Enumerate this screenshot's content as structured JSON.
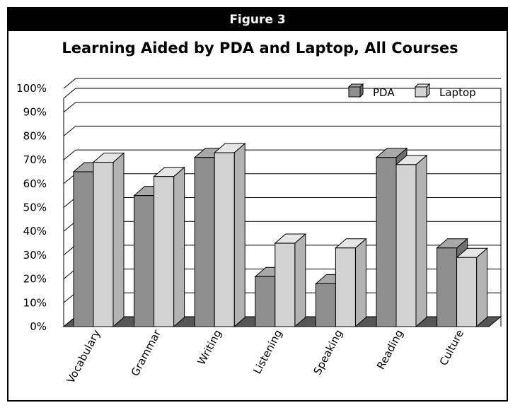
{
  "figure_label": "Figure 3",
  "colors": {
    "pda_front": "#8f8f8f",
    "pda_side": "#6e6e6e",
    "pda_top": "#a8a8a8",
    "laptop_front": "#d2d2d2",
    "laptop_side": "#b3b3b3",
    "laptop_top": "#e6e6e6",
    "floor": "#555555",
    "grid": "#000000"
  },
  "chart_data": {
    "type": "bar",
    "title": "Learning Aided by PDA and Laptop, All Courses",
    "xlabel": "",
    "ylabel": "",
    "ylim": [
      0,
      100
    ],
    "yticks": [
      "0%",
      "10%",
      "20%",
      "30%",
      "40%",
      "50%",
      "60%",
      "70%",
      "80%",
      "90%",
      "100%"
    ],
    "categories": [
      "Vocabulary",
      "Grammar",
      "Writing",
      "Listening",
      "Speaking",
      "Reading",
      "Culture"
    ],
    "series": [
      {
        "name": "PDA",
        "values": [
          65,
          55,
          71,
          21,
          18,
          71,
          33
        ]
      },
      {
        "name": "Laptop",
        "values": [
          69,
          63,
          73,
          35,
          33,
          68,
          29
        ]
      }
    ],
    "legend_position": "top-right",
    "grid": true
  }
}
